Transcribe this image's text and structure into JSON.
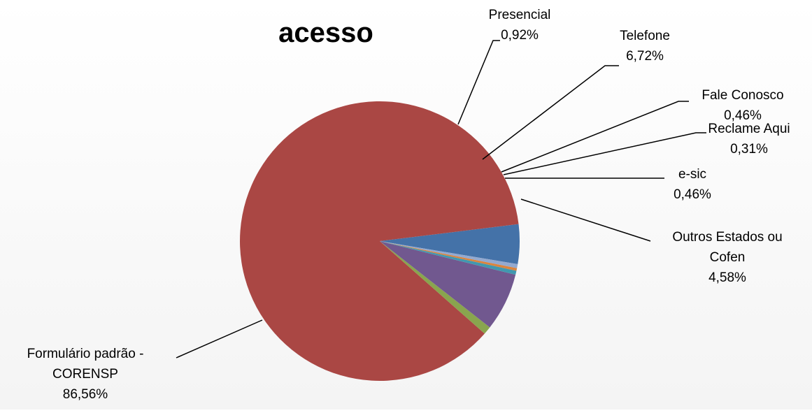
{
  "chart_data": {
    "type": "pie",
    "title_line1": "",
    "title_line2": "acesso",
    "slices": [
      {
        "label_lines": [
          "Outros Estados ou",
          "Cofen"
        ],
        "value_text": "4,58%",
        "value": 4.58,
        "color": "#4472A8"
      },
      {
        "label_lines": [
          "Formulário padrão -",
          "CORENSP"
        ],
        "value_text": "86,56%",
        "value": 86.56,
        "color": "#AA4744"
      },
      {
        "label_lines": [
          "Presencial"
        ],
        "value_text": "0,92%",
        "value": 0.92,
        "color": "#89A54E"
      },
      {
        "label_lines": [
          "Telefone"
        ],
        "value_text": "6,72%",
        "value": 6.72,
        "color": "#71588F"
      },
      {
        "label_lines": [
          "Fale Conosco"
        ],
        "value_text": "0,46%",
        "value": 0.46,
        "color": "#4198AF"
      },
      {
        "label_lines": [
          "Reclame Aqui"
        ],
        "value_text": "0,31%",
        "value": 0.31,
        "color": "#DB843D"
      },
      {
        "label_lines": [
          "e-sic"
        ],
        "value_text": "0,46%",
        "value": 0.46,
        "color": "#93A9CF"
      }
    ]
  }
}
